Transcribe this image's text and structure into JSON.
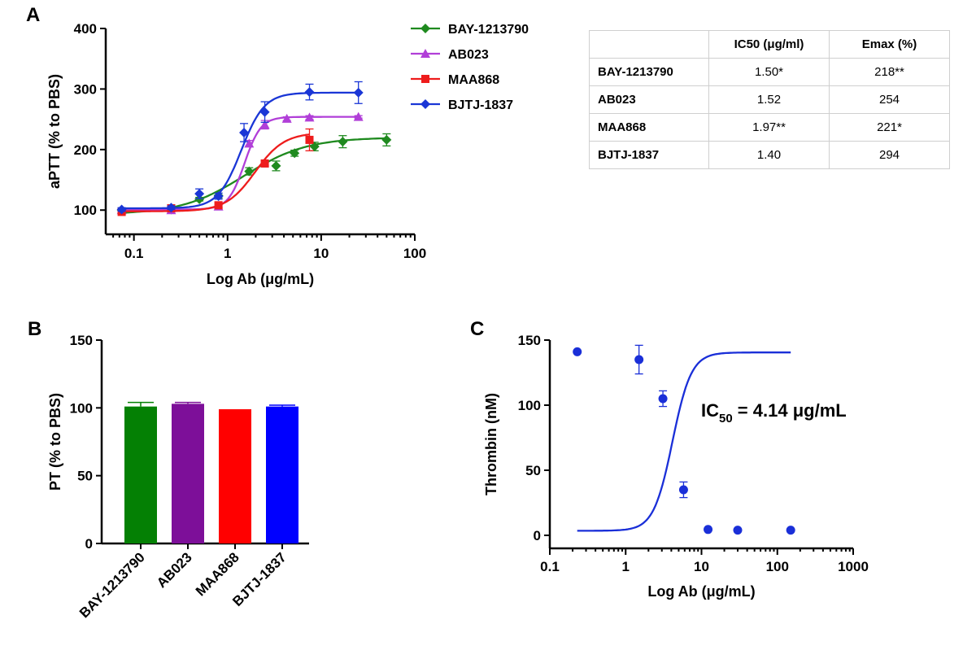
{
  "panel_letters": {
    "a": "A",
    "b": "B",
    "c": "C"
  },
  "chart_data": [
    {
      "id": "A",
      "type": "line",
      "xscale": "log",
      "xlabel": "Log Ab (μg/mL)",
      "ylabel": "aPTT (% to PBS)",
      "xlim": [
        0.05,
        100
      ],
      "ylim": [
        60,
        400
      ],
      "xticks": [
        0.1,
        1,
        10,
        100
      ],
      "xtick_labels": [
        "0.1",
        "1",
        "10",
        "100"
      ],
      "yticks": [
        100,
        200,
        300,
        400
      ],
      "ytick_labels": [
        "100",
        "200",
        "300",
        "400"
      ],
      "legend_position": "right",
      "series": [
        {
          "name": "BAY-1213790",
          "color": "#1f8a1f",
          "marker": "diamond",
          "x": [
            0.074,
            0.25,
            0.5,
            0.8,
            1.7,
            3.3,
            5.2,
            8.5,
            17,
            50
          ],
          "y": [
            100,
            101,
            118,
            124,
            164,
            173,
            194,
            205,
            213,
            216
          ],
          "err": [
            3,
            4,
            3,
            4,
            6,
            8,
            5,
            7,
            10,
            10
          ],
          "fit": {
            "bottom": 93,
            "top": 220,
            "ec50": 1.5,
            "hill": 1.3,
            "xmin": 0.074,
            "xmax": 50
          }
        },
        {
          "name": "AB023",
          "color": "#b13fd8",
          "marker": "triangle",
          "x": [
            0.074,
            0.25,
            0.8,
            1.7,
            2.5,
            4.3,
            7.5,
            25
          ],
          "y": [
            100,
            100,
            106,
            210,
            241,
            251,
            253,
            254
          ],
          "err": [
            3,
            3,
            3,
            5,
            7,
            3,
            3,
            2
          ],
          "fit": {
            "bottom": 101,
            "top": 254,
            "ec50": 1.52,
            "hill": 5,
            "xmin": 0.074,
            "xmax": 25
          }
        },
        {
          "name": "MAA868",
          "color": "#ee1c1c",
          "marker": "square",
          "x": [
            0.074,
            0.25,
            0.8,
            2.5,
            7.5
          ],
          "y": [
            97,
            103,
            108,
            177,
            216
          ],
          "err": [
            2,
            3,
            4,
            4,
            18
          ],
          "fit": {
            "bottom": 98,
            "top": 228,
            "ec50": 1.97,
            "hill": 2.8,
            "xmin": 0.074,
            "xmax": 7.5
          }
        },
        {
          "name": "BJTJ-1837",
          "color": "#1a36d6",
          "marker": "diamond",
          "x": [
            0.074,
            0.25,
            0.5,
            0.8,
            1.5,
            2.5,
            7.5,
            25
          ],
          "y": [
            101,
            104,
            127,
            123,
            228,
            262,
            295,
            294
          ],
          "err": [
            3,
            3,
            8,
            5,
            15,
            17,
            13,
            18
          ],
          "fit": {
            "bottom": 103,
            "top": 294,
            "ec50": 1.4,
            "hill": 3.5,
            "xmin": 0.074,
            "xmax": 25
          }
        }
      ]
    },
    {
      "id": "B",
      "type": "bar",
      "ylabel": "PT (% to PBS)",
      "ylim": [
        0,
        150
      ],
      "yticks": [
        0,
        50,
        100,
        150
      ],
      "ytick_labels": [
        "0",
        "50",
        "100",
        "150"
      ],
      "categories": [
        "BAY-1213790",
        "AB023",
        "MAA868",
        "BJTJ-1837"
      ],
      "values": [
        101,
        103,
        99,
        101
      ],
      "err": [
        3,
        1,
        0,
        1
      ],
      "colors": [
        "#048004",
        "#7d0f99",
        "#ff0000",
        "#0000ff"
      ]
    },
    {
      "id": "C",
      "type": "scatter",
      "xscale": "log",
      "xlabel": "Log Ab (μg/mL)",
      "ylabel": "Thrombin (nM)",
      "xlim": [
        0.1,
        1000
      ],
      "ylim": [
        -10,
        150
      ],
      "xticks": [
        0.1,
        1,
        10,
        100,
        1000
      ],
      "xtick_labels": [
        "0.1",
        "1",
        "10",
        "100",
        "1000"
      ],
      "yticks": [
        0,
        50,
        100,
        150
      ],
      "ytick_labels": [
        "0",
        "50",
        "100",
        "150"
      ],
      "series": [
        {
          "name": "Thrombin",
          "color": "#1a2fd8",
          "x": [
            0.23,
            1.5,
            3.1,
            5.8,
            12.2,
            30,
            150
          ],
          "y": [
            141,
            135,
            105,
            35,
            4.5,
            4,
            4
          ],
          "err": [
            0,
            11,
            6,
            6,
            0,
            0,
            0
          ],
          "fit": {
            "bottom": 3.5,
            "top": 140.5,
            "ec50": 4.14,
            "hill": 3.5,
            "xmin": 0.23,
            "xmax": 150
          }
        }
      ],
      "annotation": {
        "main": "IC",
        "sub": "50",
        "rest": " = 4.14 μg/mL"
      }
    }
  ],
  "table": {
    "headers": [
      "",
      "IC50 (μg/ml)",
      "Emax (%)"
    ],
    "rows": [
      {
        "name": "BAY-1213790",
        "ic50": "1.50*",
        "emax": "218**"
      },
      {
        "name": "AB023",
        "ic50": "1.52",
        "emax": "254"
      },
      {
        "name": "MAA868",
        "ic50": "1.97**",
        "emax": "221*"
      },
      {
        "name": "BJTJ-1837",
        "ic50": "1.40",
        "emax": "294"
      }
    ]
  }
}
